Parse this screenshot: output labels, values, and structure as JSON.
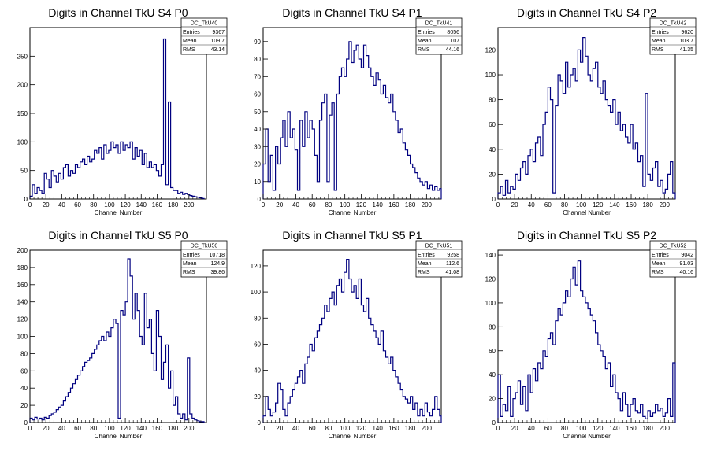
{
  "chart_data": [
    {
      "type": "histogram",
      "title": "Digits in Channel TkU S4 P0",
      "xlabel": "Channel Number",
      "xlim": [
        0,
        222
      ],
      "ylim": [
        0,
        300
      ],
      "xticks": [
        0,
        20,
        40,
        60,
        80,
        100,
        120,
        140,
        160,
        180,
        200
      ],
      "yticks": [
        0,
        50,
        100,
        150,
        200,
        250
      ],
      "color": "#000080",
      "stats": {
        "name": "DC_TkU40",
        "rows": [
          {
            "label": "Entries",
            "value": "9367"
          },
          {
            "label": "Mean",
            "value": "109.7"
          },
          {
            "label": "RMS",
            "value": "43.14"
          }
        ]
      },
      "x": [
        0,
        3,
        6,
        9,
        12,
        15,
        18,
        21,
        24,
        27,
        30,
        33,
        36,
        39,
        42,
        45,
        48,
        51,
        54,
        57,
        60,
        63,
        66,
        69,
        72,
        75,
        78,
        81,
        84,
        87,
        90,
        93,
        96,
        99,
        102,
        105,
        108,
        111,
        114,
        117,
        120,
        123,
        126,
        129,
        132,
        135,
        138,
        141,
        144,
        147,
        150,
        153,
        156,
        159,
        162,
        165,
        168,
        171,
        174,
        177,
        180,
        183,
        186,
        189,
        192,
        195,
        198,
        201,
        204,
        207,
        210,
        213,
        216
      ],
      "values": [
        5,
        25,
        10,
        20,
        15,
        10,
        45,
        35,
        20,
        50,
        40,
        30,
        45,
        35,
        55,
        60,
        40,
        50,
        45,
        60,
        55,
        65,
        70,
        60,
        75,
        65,
        70,
        85,
        80,
        90,
        70,
        95,
        80,
        85,
        100,
        90,
        95,
        80,
        100,
        85,
        95,
        90,
        100,
        70,
        90,
        75,
        85,
        60,
        80,
        55,
        65,
        55,
        60,
        50,
        40,
        60,
        280,
        25,
        170,
        20,
        15,
        15,
        10,
        12,
        8,
        10,
        8,
        6,
        5,
        4,
        3,
        2,
        1
      ]
    },
    {
      "type": "histogram",
      "title": "Digits in Channel TkU S4 P1",
      "xlabel": "Channel Number",
      "xlim": [
        0,
        218
      ],
      "ylim": [
        0,
        98
      ],
      "xticks": [
        0,
        20,
        40,
        60,
        80,
        100,
        120,
        140,
        160,
        180,
        200
      ],
      "yticks": [
        10,
        20,
        30,
        40,
        50,
        60,
        70,
        80,
        90
      ],
      "color": "#000080",
      "stats": {
        "name": "DC_TkU41",
        "rows": [
          {
            "label": "Entries",
            "value": "8056"
          },
          {
            "label": "Mean",
            "value": "107"
          },
          {
            "label": "RMS",
            "value": "44.16"
          }
        ]
      },
      "x": [
        0,
        3,
        6,
        9,
        12,
        15,
        18,
        21,
        24,
        27,
        30,
        33,
        36,
        39,
        42,
        45,
        48,
        51,
        54,
        57,
        60,
        63,
        66,
        69,
        72,
        75,
        78,
        81,
        84,
        87,
        90,
        93,
        96,
        99,
        102,
        105,
        108,
        111,
        114,
        117,
        120,
        123,
        126,
        129,
        132,
        135,
        138,
        141,
        144,
        147,
        150,
        153,
        156,
        159,
        162,
        165,
        168,
        171,
        174,
        177,
        180,
        183,
        186,
        189,
        192,
        195,
        198,
        201,
        204,
        207,
        210,
        213,
        216
      ],
      "values": [
        20,
        40,
        10,
        25,
        5,
        30,
        20,
        35,
        45,
        30,
        50,
        35,
        40,
        28,
        5,
        45,
        30,
        50,
        35,
        45,
        40,
        25,
        10,
        45,
        55,
        60,
        10,
        48,
        55,
        5,
        60,
        70,
        75,
        70,
        80,
        90,
        78,
        85,
        88,
        80,
        75,
        88,
        82,
        75,
        70,
        65,
        72,
        68,
        60,
        65,
        58,
        55,
        60,
        50,
        45,
        38,
        40,
        32,
        28,
        25,
        20,
        18,
        15,
        12,
        10,
        8,
        10,
        6,
        8,
        5,
        7,
        5,
        6
      ]
    },
    {
      "type": "histogram",
      "title": "Digits in Channel TkU S4 P2",
      "xlabel": "Channel Number",
      "xlim": [
        0,
        213
      ],
      "ylim": [
        0,
        138
      ],
      "xticks": [
        0,
        20,
        40,
        60,
        80,
        100,
        120,
        140,
        160,
        180,
        200
      ],
      "yticks": [
        20,
        40,
        60,
        80,
        100,
        120
      ],
      "color": "#000080",
      "stats": {
        "name": "DC_TkU42",
        "rows": [
          {
            "label": "Entries",
            "value": "9620"
          },
          {
            "label": "Mean",
            "value": "103.7"
          },
          {
            "label": "RMS",
            "value": "41.35"
          }
        ]
      },
      "x": [
        0,
        3,
        6,
        9,
        12,
        15,
        18,
        21,
        24,
        27,
        30,
        33,
        36,
        39,
        42,
        45,
        48,
        51,
        54,
        57,
        60,
        63,
        66,
        69,
        72,
        75,
        78,
        81,
        84,
        87,
        90,
        93,
        96,
        99,
        102,
        105,
        108,
        111,
        114,
        117,
        120,
        123,
        126,
        129,
        132,
        135,
        138,
        141,
        144,
        147,
        150,
        153,
        156,
        159,
        162,
        165,
        168,
        171,
        174,
        177,
        180,
        183,
        186,
        189,
        192,
        195,
        198,
        201,
        204,
        207,
        210
      ],
      "values": [
        5,
        10,
        3,
        15,
        5,
        10,
        8,
        20,
        15,
        25,
        30,
        20,
        35,
        40,
        30,
        45,
        50,
        35,
        60,
        70,
        90,
        80,
        5,
        75,
        100,
        95,
        85,
        110,
        90,
        100,
        105,
        95,
        120,
        110,
        130,
        115,
        100,
        95,
        105,
        110,
        90,
        85,
        95,
        80,
        75,
        70,
        80,
        60,
        70,
        55,
        60,
        50,
        45,
        60,
        40,
        45,
        30,
        35,
        10,
        85,
        20,
        15,
        25,
        30,
        10,
        15,
        5,
        8,
        20,
        30,
        5
      ]
    },
    {
      "type": "histogram",
      "title": "Digits in Channel TkU S5 P0",
      "xlabel": "Channel Number",
      "xlim": [
        0,
        222
      ],
      "ylim": [
        0,
        200
      ],
      "xticks": [
        0,
        20,
        40,
        60,
        80,
        100,
        120,
        140,
        160,
        180,
        200
      ],
      "yticks": [
        20,
        40,
        60,
        80,
        100,
        120,
        140,
        160,
        180,
        200
      ],
      "color": "#000080",
      "stats": {
        "name": "DC_TkU50",
        "rows": [
          {
            "label": "Entries",
            "value": "10718"
          },
          {
            "label": "Mean",
            "value": "124.9"
          },
          {
            "label": "RMS",
            "value": "39.86"
          }
        ]
      },
      "x": [
        0,
        3,
        6,
        9,
        12,
        15,
        18,
        21,
        24,
        27,
        30,
        33,
        36,
        39,
        42,
        45,
        48,
        51,
        54,
        57,
        60,
        63,
        66,
        69,
        72,
        75,
        78,
        81,
        84,
        87,
        90,
        93,
        96,
        99,
        102,
        105,
        108,
        111,
        114,
        117,
        120,
        123,
        126,
        129,
        132,
        135,
        138,
        141,
        144,
        147,
        150,
        153,
        156,
        159,
        162,
        165,
        168,
        171,
        174,
        177,
        180,
        183,
        186,
        189,
        192,
        195,
        198,
        201,
        204,
        207,
        210,
        213,
        216
      ],
      "values": [
        5,
        3,
        6,
        4,
        5,
        3,
        6,
        5,
        8,
        10,
        12,
        15,
        18,
        20,
        25,
        30,
        35,
        40,
        45,
        50,
        55,
        60,
        65,
        70,
        72,
        75,
        80,
        85,
        90,
        95,
        100,
        95,
        105,
        100,
        110,
        120,
        115,
        5,
        130,
        125,
        140,
        190,
        170,
        120,
        150,
        130,
        100,
        90,
        150,
        110,
        120,
        80,
        60,
        130,
        100,
        50,
        70,
        90,
        40,
        60,
        20,
        30,
        10,
        5,
        10,
        3,
        75,
        10,
        5,
        3,
        2,
        1,
        1
      ]
    },
    {
      "type": "histogram",
      "title": "Digits in Channel TkU S5 P1",
      "xlabel": "Channel Number",
      "xlim": [
        0,
        218
      ],
      "ylim": [
        0,
        132
      ],
      "xticks": [
        0,
        20,
        40,
        60,
        80,
        100,
        120,
        140,
        160,
        180,
        200
      ],
      "yticks": [
        20,
        40,
        60,
        80,
        100,
        120
      ],
      "color": "#000080",
      "stats": {
        "name": "DC_TkU51",
        "rows": [
          {
            "label": "Entries",
            "value": "9258"
          },
          {
            "label": "Mean",
            "value": "112.6"
          },
          {
            "label": "RMS",
            "value": "41.08"
          }
        ]
      },
      "x": [
        0,
        3,
        6,
        9,
        12,
        15,
        18,
        21,
        24,
        27,
        30,
        33,
        36,
        39,
        42,
        45,
        48,
        51,
        54,
        57,
        60,
        63,
        66,
        69,
        72,
        75,
        78,
        81,
        84,
        87,
        90,
        93,
        96,
        99,
        102,
        105,
        108,
        111,
        114,
        117,
        120,
        123,
        126,
        129,
        132,
        135,
        138,
        141,
        144,
        147,
        150,
        153,
        156,
        159,
        162,
        165,
        168,
        171,
        174,
        177,
        180,
        183,
        186,
        189,
        192,
        195,
        198,
        201,
        204,
        207,
        210,
        213,
        216
      ],
      "values": [
        5,
        20,
        10,
        5,
        8,
        15,
        30,
        25,
        10,
        5,
        15,
        20,
        25,
        30,
        35,
        40,
        30,
        45,
        50,
        60,
        55,
        65,
        70,
        75,
        80,
        90,
        85,
        95,
        100,
        90,
        105,
        110,
        100,
        115,
        125,
        110,
        100,
        105,
        95,
        110,
        90,
        85,
        95,
        80,
        75,
        70,
        65,
        60,
        70,
        55,
        50,
        45,
        50,
        40,
        35,
        30,
        25,
        20,
        18,
        15,
        20,
        10,
        15,
        5,
        10,
        5,
        15,
        8,
        5,
        10,
        20,
        10,
        5
      ]
    },
    {
      "type": "histogram",
      "title": "Digits in Channel TkU S5 P2",
      "xlabel": "Channel Number",
      "xlim": [
        0,
        213
      ],
      "ylim": [
        0,
        144
      ],
      "xticks": [
        0,
        20,
        40,
        60,
        80,
        100,
        120,
        140,
        160,
        180,
        200
      ],
      "yticks": [
        20,
        40,
        60,
        80,
        100,
        120,
        140
      ],
      "color": "#000080",
      "stats": {
        "name": "DC_TkU52",
        "rows": [
          {
            "label": "Entries",
            "value": "9042"
          },
          {
            "label": "Mean",
            "value": "91.03"
          },
          {
            "label": "RMS",
            "value": "40.16"
          }
        ]
      },
      "x": [
        0,
        3,
        6,
        9,
        12,
        15,
        18,
        21,
        24,
        27,
        30,
        33,
        36,
        39,
        42,
        45,
        48,
        51,
        54,
        57,
        60,
        63,
        66,
        69,
        72,
        75,
        78,
        81,
        84,
        87,
        90,
        93,
        96,
        99,
        102,
        105,
        108,
        111,
        114,
        117,
        120,
        123,
        126,
        129,
        132,
        135,
        138,
        141,
        144,
        147,
        150,
        153,
        156,
        159,
        162,
        165,
        168,
        171,
        174,
        177,
        180,
        183,
        186,
        189,
        192,
        195,
        198,
        201,
        204,
        207,
        210
      ],
      "values": [
        40,
        5,
        15,
        10,
        30,
        5,
        20,
        25,
        35,
        15,
        30,
        10,
        40,
        25,
        45,
        35,
        50,
        45,
        60,
        55,
        70,
        75,
        65,
        85,
        95,
        90,
        100,
        110,
        105,
        120,
        130,
        115,
        135,
        110,
        105,
        100,
        95,
        90,
        85,
        75,
        65,
        60,
        55,
        45,
        50,
        30,
        40,
        25,
        20,
        10,
        25,
        15,
        5,
        15,
        20,
        10,
        8,
        15,
        5,
        3,
        10,
        5,
        8,
        15,
        10,
        12,
        5,
        8,
        20,
        5,
        50
      ]
    }
  ]
}
